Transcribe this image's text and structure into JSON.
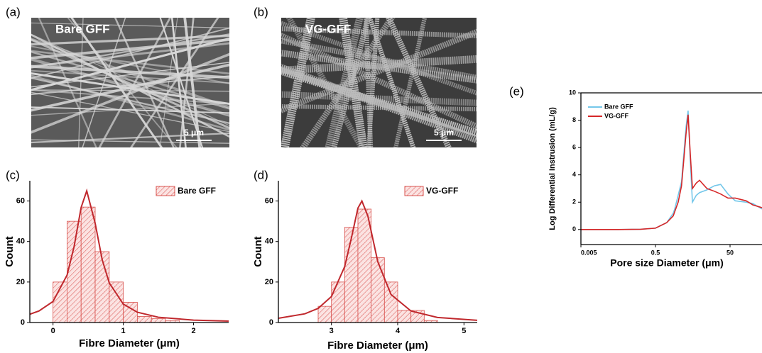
{
  "images": [
    {
      "panel_label": "(a)",
      "label": "Bare GFF",
      "scale_bar": "5 μm"
    },
    {
      "panel_label": "(b)",
      "label": "VG-GFF",
      "scale_bar": "5 μm"
    }
  ],
  "chart_data": [
    {
      "type": "histogram",
      "panel_label": "(c)",
      "name": "Bare GFF",
      "color": "#d9534f",
      "fit_color": "#c0282d",
      "xlabel": "Fibre Diameter (μm)",
      "ylabel": "Count",
      "bins": [
        0,
        0.2,
        0.4,
        0.6,
        0.8,
        1.0,
        1.2,
        1.4,
        1.6,
        1.8
      ],
      "values": [
        20,
        50,
        57,
        35,
        20,
        10,
        3,
        2,
        1
      ],
      "fit": {
        "x": [
          -0.33,
          -0.2,
          0,
          0.2,
          0.3,
          0.4,
          0.48,
          0.6,
          0.7,
          0.8,
          1.0,
          1.2,
          1.5,
          2.0,
          2.5
        ],
        "values": [
          4.1,
          5.7,
          10.4,
          23.4,
          37.5,
          56.8,
          65,
          49.0,
          31.0,
          19.6,
          9.1,
          5.1,
          2.6,
          1.2,
          0.7
        ]
      },
      "xlim": [
        -0.33,
        2.5
      ],
      "ylim": [
        0,
        70
      ],
      "xticks": [
        0,
        1,
        2
      ],
      "yticks": [
        0,
        20,
        40,
        60
      ]
    },
    {
      "type": "histogram",
      "panel_label": "(d)",
      "name": "VG-GFF",
      "color": "#d9534f",
      "fit_color": "#c0282d",
      "xlabel": "Fibre Diameter (μm)",
      "ylabel": "Count",
      "bins": [
        2.8,
        3.0,
        3.2,
        3.4,
        3.6,
        3.8,
        4.0,
        4.2,
        4.4,
        4.6
      ],
      "values": [
        8,
        20,
        47,
        56,
        32,
        20,
        6,
        6,
        1
      ],
      "fit": {
        "x": [
          2.2,
          2.6,
          2.8,
          3.0,
          3.2,
          3.3,
          3.4,
          3.46,
          3.55,
          3.7,
          3.9,
          4.2,
          4.6,
          5.2
        ],
        "values": [
          2.1,
          4.3,
          7.0,
          12.8,
          27.6,
          41.5,
          56.5,
          60,
          52.6,
          30,
          13.8,
          5.7,
          2.5,
          1.1
        ]
      },
      "xlim": [
        2.2,
        5.2
      ],
      "ylim": [
        0,
        70
      ],
      "xticks": [
        3,
        4,
        5
      ],
      "yticks": [
        0,
        20,
        40,
        60
      ]
    },
    {
      "type": "line",
      "panel_label": "(e)",
      "xlabel": "Pore size Diameter (μm)",
      "ylabel": "Log Differential Instrusion (mL/g)",
      "xscale": "log",
      "x": [
        0.005,
        0.05,
        0.2,
        0.5,
        1,
        1.5,
        1.64,
        2.03,
        2.5,
        3.3,
        3.75,
        4.3,
        4.9,
        6.2,
        7.6,
        12,
        19,
        28,
        44,
        69,
        135,
        205,
        360
      ],
      "series": [
        {
          "name": "Bare GFF",
          "color": "#74c7ea",
          "values": [
            0,
            0,
            0.02,
            0.1,
            0.5,
            1.2,
            1.5,
            2.5,
            3.5,
            7.5,
            8.7,
            5,
            2.0,
            2.5,
            2.7,
            2.9,
            3.2,
            3.3,
            2.6,
            2.1,
            2.0,
            1.9,
            1.5
          ]
        },
        {
          "name": "VG-GFF",
          "color": "#d62728",
          "values": [
            0,
            0,
            0.02,
            0.1,
            0.5,
            1.0,
            1.3,
            2.0,
            3.2,
            7.0,
            8.4,
            5.5,
            3.0,
            3.4,
            3.6,
            3.0,
            2.8,
            2.6,
            2.3,
            2.3,
            2.1,
            1.8,
            1.6
          ]
        }
      ],
      "xlim": [
        0.005,
        360
      ],
      "ylim": [
        -1.1,
        10
      ],
      "xticks": [
        0.005,
        0.5,
        50
      ],
      "yticks": [
        0,
        2,
        4,
        6,
        8,
        10
      ]
    }
  ]
}
